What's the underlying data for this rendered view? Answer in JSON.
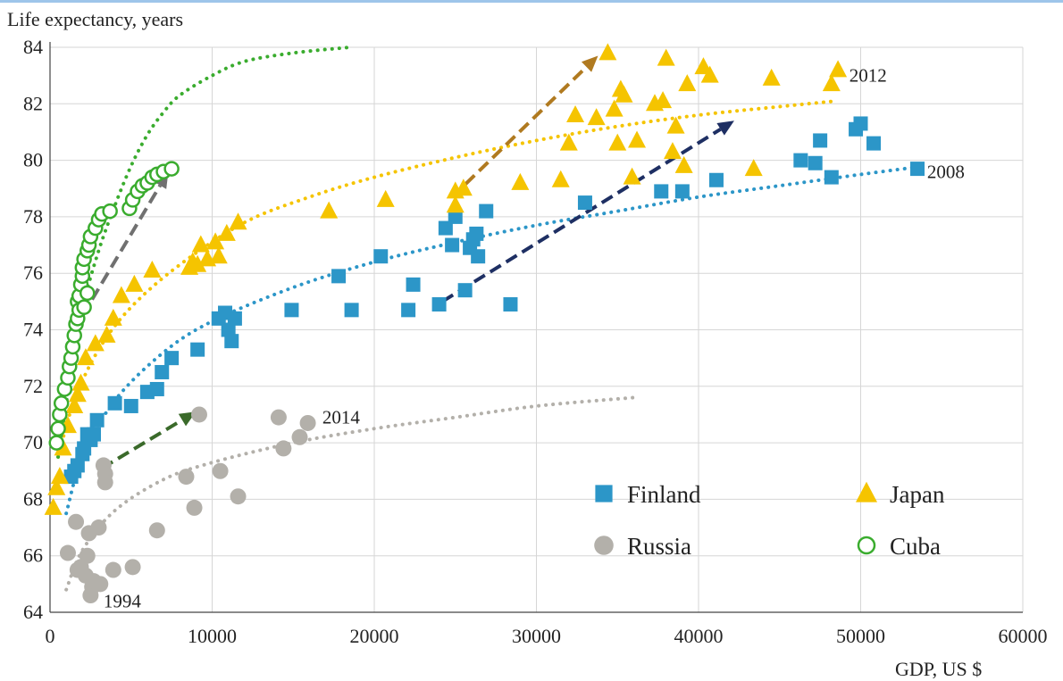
{
  "chart_data": {
    "type": "scatter",
    "xlabel": "GDP, US $",
    "ylabel": "Life expectancy, years",
    "xlim": [
      0,
      60000
    ],
    "ylim": [
      64,
      84
    ],
    "x_ticks": [
      0,
      10000,
      20000,
      30000,
      40000,
      50000,
      60000
    ],
    "y_ticks": [
      64,
      66,
      68,
      70,
      72,
      74,
      76,
      78,
      80,
      82,
      84
    ],
    "grid": true,
    "legend_placement": "bottom-right",
    "series": [
      {
        "name": "Finland",
        "color": "#2c96c8",
        "marker": "square",
        "points": [
          [
            1300,
            68.8
          ],
          [
            1500,
            69.0
          ],
          [
            1700,
            69.2
          ],
          [
            2000,
            69.6
          ],
          [
            2100,
            69.8
          ],
          [
            2300,
            70.3
          ],
          [
            2500,
            70.1
          ],
          [
            2700,
            70.3
          ],
          [
            2900,
            70.8
          ],
          [
            4000,
            71.4
          ],
          [
            5000,
            71.3
          ],
          [
            6000,
            71.8
          ],
          [
            6600,
            71.9
          ],
          [
            6900,
            72.5
          ],
          [
            7500,
            73.0
          ],
          [
            9100,
            73.3
          ],
          [
            10400,
            74.4
          ],
          [
            10800,
            74.6
          ],
          [
            11000,
            74.0
          ],
          [
            11200,
            73.6
          ],
          [
            11400,
            74.4
          ],
          [
            14900,
            74.7
          ],
          [
            17800,
            75.9
          ],
          [
            18600,
            74.7
          ],
          [
            20400,
            76.6
          ],
          [
            22100,
            74.7
          ],
          [
            22400,
            75.6
          ],
          [
            24000,
            74.9
          ],
          [
            24400,
            77.6
          ],
          [
            24800,
            77.0
          ],
          [
            25000,
            78.0
          ],
          [
            25600,
            75.4
          ],
          [
            25900,
            76.9
          ],
          [
            26100,
            77.2
          ],
          [
            26300,
            77.4
          ],
          [
            26400,
            76.6
          ],
          [
            26900,
            78.2
          ],
          [
            28400,
            74.9
          ],
          [
            33000,
            78.5
          ],
          [
            37700,
            78.9
          ],
          [
            39000,
            78.9
          ],
          [
            41100,
            79.3
          ],
          [
            46300,
            80.0
          ],
          [
            47200,
            79.9
          ],
          [
            47500,
            80.7
          ],
          [
            48200,
            79.4
          ],
          [
            49700,
            81.1
          ],
          [
            50000,
            81.3
          ],
          [
            50800,
            80.6
          ],
          [
            53500,
            79.7
          ]
        ]
      },
      {
        "name": "Japan",
        "color": "#f5c400",
        "marker": "triangle",
        "points": [
          [
            200,
            67.7
          ],
          [
            400,
            68.4
          ],
          [
            600,
            68.8
          ],
          [
            800,
            69.8
          ],
          [
            1100,
            70.6
          ],
          [
            1500,
            71.3
          ],
          [
            1700,
            71.7
          ],
          [
            1900,
            72.1
          ],
          [
            2200,
            73.0
          ],
          [
            2800,
            73.5
          ],
          [
            3500,
            73.8
          ],
          [
            3900,
            74.4
          ],
          [
            4400,
            75.2
          ],
          [
            5200,
            75.6
          ],
          [
            6300,
            76.1
          ],
          [
            8600,
            76.2
          ],
          [
            8800,
            76.4
          ],
          [
            9100,
            76.3
          ],
          [
            9300,
            77.0
          ],
          [
            9700,
            76.5
          ],
          [
            10200,
            77.1
          ],
          [
            10400,
            76.6
          ],
          [
            10900,
            77.4
          ],
          [
            11600,
            77.8
          ],
          [
            17200,
            78.2
          ],
          [
            20700,
            78.6
          ],
          [
            25000,
            78.9
          ],
          [
            25000,
            78.4
          ],
          [
            25500,
            79.0
          ],
          [
            29000,
            79.2
          ],
          [
            31500,
            79.3
          ],
          [
            32000,
            80.6
          ],
          [
            32400,
            81.6
          ],
          [
            33700,
            81.5
          ],
          [
            34400,
            83.8
          ],
          [
            34800,
            81.8
          ],
          [
            35000,
            80.6
          ],
          [
            35200,
            82.5
          ],
          [
            35400,
            82.3
          ],
          [
            35900,
            79.4
          ],
          [
            36200,
            80.7
          ],
          [
            37300,
            82.0
          ],
          [
            37800,
            82.1
          ],
          [
            38000,
            83.6
          ],
          [
            38400,
            80.3
          ],
          [
            38600,
            81.2
          ],
          [
            39100,
            79.8
          ],
          [
            39300,
            82.7
          ],
          [
            40300,
            83.3
          ],
          [
            40700,
            83.0
          ],
          [
            43400,
            79.7
          ],
          [
            44500,
            82.9
          ],
          [
            48200,
            82.7
          ],
          [
            48600,
            83.2
          ]
        ]
      },
      {
        "name": "Russia",
        "color": "#b3b0aa",
        "marker": "circle",
        "points": [
          [
            1100,
            66.1
          ],
          [
            1600,
            67.2
          ],
          [
            1700,
            65.5
          ],
          [
            1900,
            65.6
          ],
          [
            2200,
            65.3
          ],
          [
            2300,
            66.0
          ],
          [
            2400,
            66.8
          ],
          [
            2500,
            64.6
          ],
          [
            2600,
            64.9
          ],
          [
            2700,
            65.1
          ],
          [
            3000,
            67.0
          ],
          [
            3100,
            65.0
          ],
          [
            3300,
            69.2
          ],
          [
            3400,
            68.9
          ],
          [
            3400,
            68.6
          ],
          [
            3900,
            65.5
          ],
          [
            5100,
            65.6
          ],
          [
            6600,
            66.9
          ],
          [
            8400,
            68.8
          ],
          [
            8900,
            67.7
          ],
          [
            9200,
            71.0
          ],
          [
            10500,
            69.0
          ],
          [
            11600,
            68.1
          ],
          [
            14100,
            70.9
          ],
          [
            14400,
            69.8
          ],
          [
            15400,
            70.2
          ],
          [
            15900,
            70.7
          ]
        ]
      },
      {
        "name": "Cuba",
        "color": "#3aac2e",
        "marker": "ring",
        "points": [
          [
            400,
            70.0
          ],
          [
            500,
            70.5
          ],
          [
            600,
            71.0
          ],
          [
            700,
            71.4
          ],
          [
            900,
            71.9
          ],
          [
            1100,
            72.3
          ],
          [
            1200,
            72.7
          ],
          [
            1300,
            73.0
          ],
          [
            1400,
            73.4
          ],
          [
            1500,
            73.8
          ],
          [
            1600,
            74.2
          ],
          [
            1700,
            74.4
          ],
          [
            1700,
            75.0
          ],
          [
            1800,
            74.7
          ],
          [
            1800,
            75.2
          ],
          [
            1900,
            75.6
          ],
          [
            2000,
            75.9
          ],
          [
            2000,
            76.2
          ],
          [
            2100,
            76.5
          ],
          [
            2300,
            76.8
          ],
          [
            2400,
            77.0
          ],
          [
            2500,
            77.3
          ],
          [
            2800,
            77.6
          ],
          [
            3000,
            77.9
          ],
          [
            3200,
            78.1
          ],
          [
            3700,
            78.2
          ],
          [
            4900,
            78.3
          ],
          [
            5100,
            78.6
          ],
          [
            5400,
            78.9
          ],
          [
            5700,
            79.1
          ],
          [
            6000,
            79.2
          ],
          [
            6300,
            79.4
          ],
          [
            6600,
            79.5
          ],
          [
            7000,
            79.6
          ],
          [
            7500,
            79.7
          ],
          [
            2300,
            75.3
          ],
          [
            2100,
            74.8
          ]
        ]
      }
    ],
    "trends": [
      {
        "name": "finland-trend",
        "color": "#2c96c8",
        "points": [
          [
            1000,
            67.5
          ],
          [
            2000,
            69.5
          ],
          [
            4000,
            71.5
          ],
          [
            7000,
            73.2
          ],
          [
            10000,
            74.3
          ],
          [
            15000,
            75.5
          ],
          [
            20000,
            76.4
          ],
          [
            25000,
            77.1
          ],
          [
            30000,
            77.7
          ],
          [
            35000,
            78.2
          ],
          [
            40000,
            78.7
          ],
          [
            45000,
            79.1
          ],
          [
            50000,
            79.5
          ],
          [
            54000,
            79.8
          ]
        ]
      },
      {
        "name": "japan-trend",
        "color": "#f5c400",
        "points": [
          [
            500,
            69.5
          ],
          [
            1500,
            71.5
          ],
          [
            3000,
            73.3
          ],
          [
            5000,
            74.8
          ],
          [
            8000,
            76.3
          ],
          [
            12000,
            77.8
          ],
          [
            16000,
            78.7
          ],
          [
            20000,
            79.4
          ],
          [
            25000,
            80.1
          ],
          [
            30000,
            80.7
          ],
          [
            35000,
            81.2
          ],
          [
            40000,
            81.6
          ],
          [
            45000,
            81.9
          ],
          [
            48500,
            82.1
          ]
        ]
      },
      {
        "name": "russia-trend",
        "color": "#b3b0aa",
        "points": [
          [
            1000,
            64.8
          ],
          [
            2000,
            66.2
          ],
          [
            4000,
            67.6
          ],
          [
            7000,
            68.7
          ],
          [
            10000,
            69.3
          ],
          [
            15000,
            70.0
          ],
          [
            20000,
            70.5
          ],
          [
            25000,
            70.9
          ],
          [
            30000,
            71.3
          ],
          [
            36000,
            71.6
          ]
        ]
      },
      {
        "name": "cuba-trend",
        "color": "#3aac2e",
        "points": [
          [
            500,
            69.5
          ],
          [
            1000,
            71.4
          ],
          [
            1500,
            73.2
          ],
          [
            2000,
            74.8
          ],
          [
            3000,
            76.8
          ],
          [
            4000,
            78.4
          ],
          [
            5000,
            79.8
          ],
          [
            6000,
            80.9
          ],
          [
            7000,
            81.7
          ],
          [
            8000,
            82.3
          ],
          [
            10000,
            83.0
          ],
          [
            12000,
            83.5
          ],
          [
            15000,
            83.8
          ],
          [
            18500,
            84.0
          ]
        ]
      }
    ],
    "arrows": [
      {
        "name": "cuba-arrow",
        "color": "#707070",
        "from": [
          2000,
          74.5
        ],
        "to": [
          7300,
          79.6
        ]
      },
      {
        "name": "russia-arrow",
        "color": "#3a6a2a",
        "from": [
          3200,
          69.1
        ],
        "to": [
          9000,
          71.1
        ]
      },
      {
        "name": "japan-arrow",
        "color": "#b07a20",
        "from": [
          24800,
          78.7
        ],
        "to": [
          33800,
          83.7
        ]
      },
      {
        "name": "finland-arrow",
        "color": "#1e2f63",
        "from": [
          24200,
          75.0
        ],
        "to": [
          42200,
          81.4
        ]
      }
    ],
    "annotations": [
      {
        "text": "2012",
        "x": 49300,
        "y": 83.0
      },
      {
        "text": "2008",
        "x": 54100,
        "y": 79.6
      },
      {
        "text": "2014",
        "x": 16800,
        "y": 70.9
      },
      {
        "text": "1994",
        "x": 3300,
        "y": 64.4
      }
    ],
    "legend": [
      {
        "name": "Finland",
        "marker": "square",
        "color": "#2c96c8"
      },
      {
        "name": "Japan",
        "marker": "triangle",
        "color": "#f5c400"
      },
      {
        "name": "Russia",
        "marker": "circle",
        "color": "#b3b0aa"
      },
      {
        "name": "Cuba",
        "marker": "ring",
        "color": "#3aac2e"
      }
    ]
  }
}
